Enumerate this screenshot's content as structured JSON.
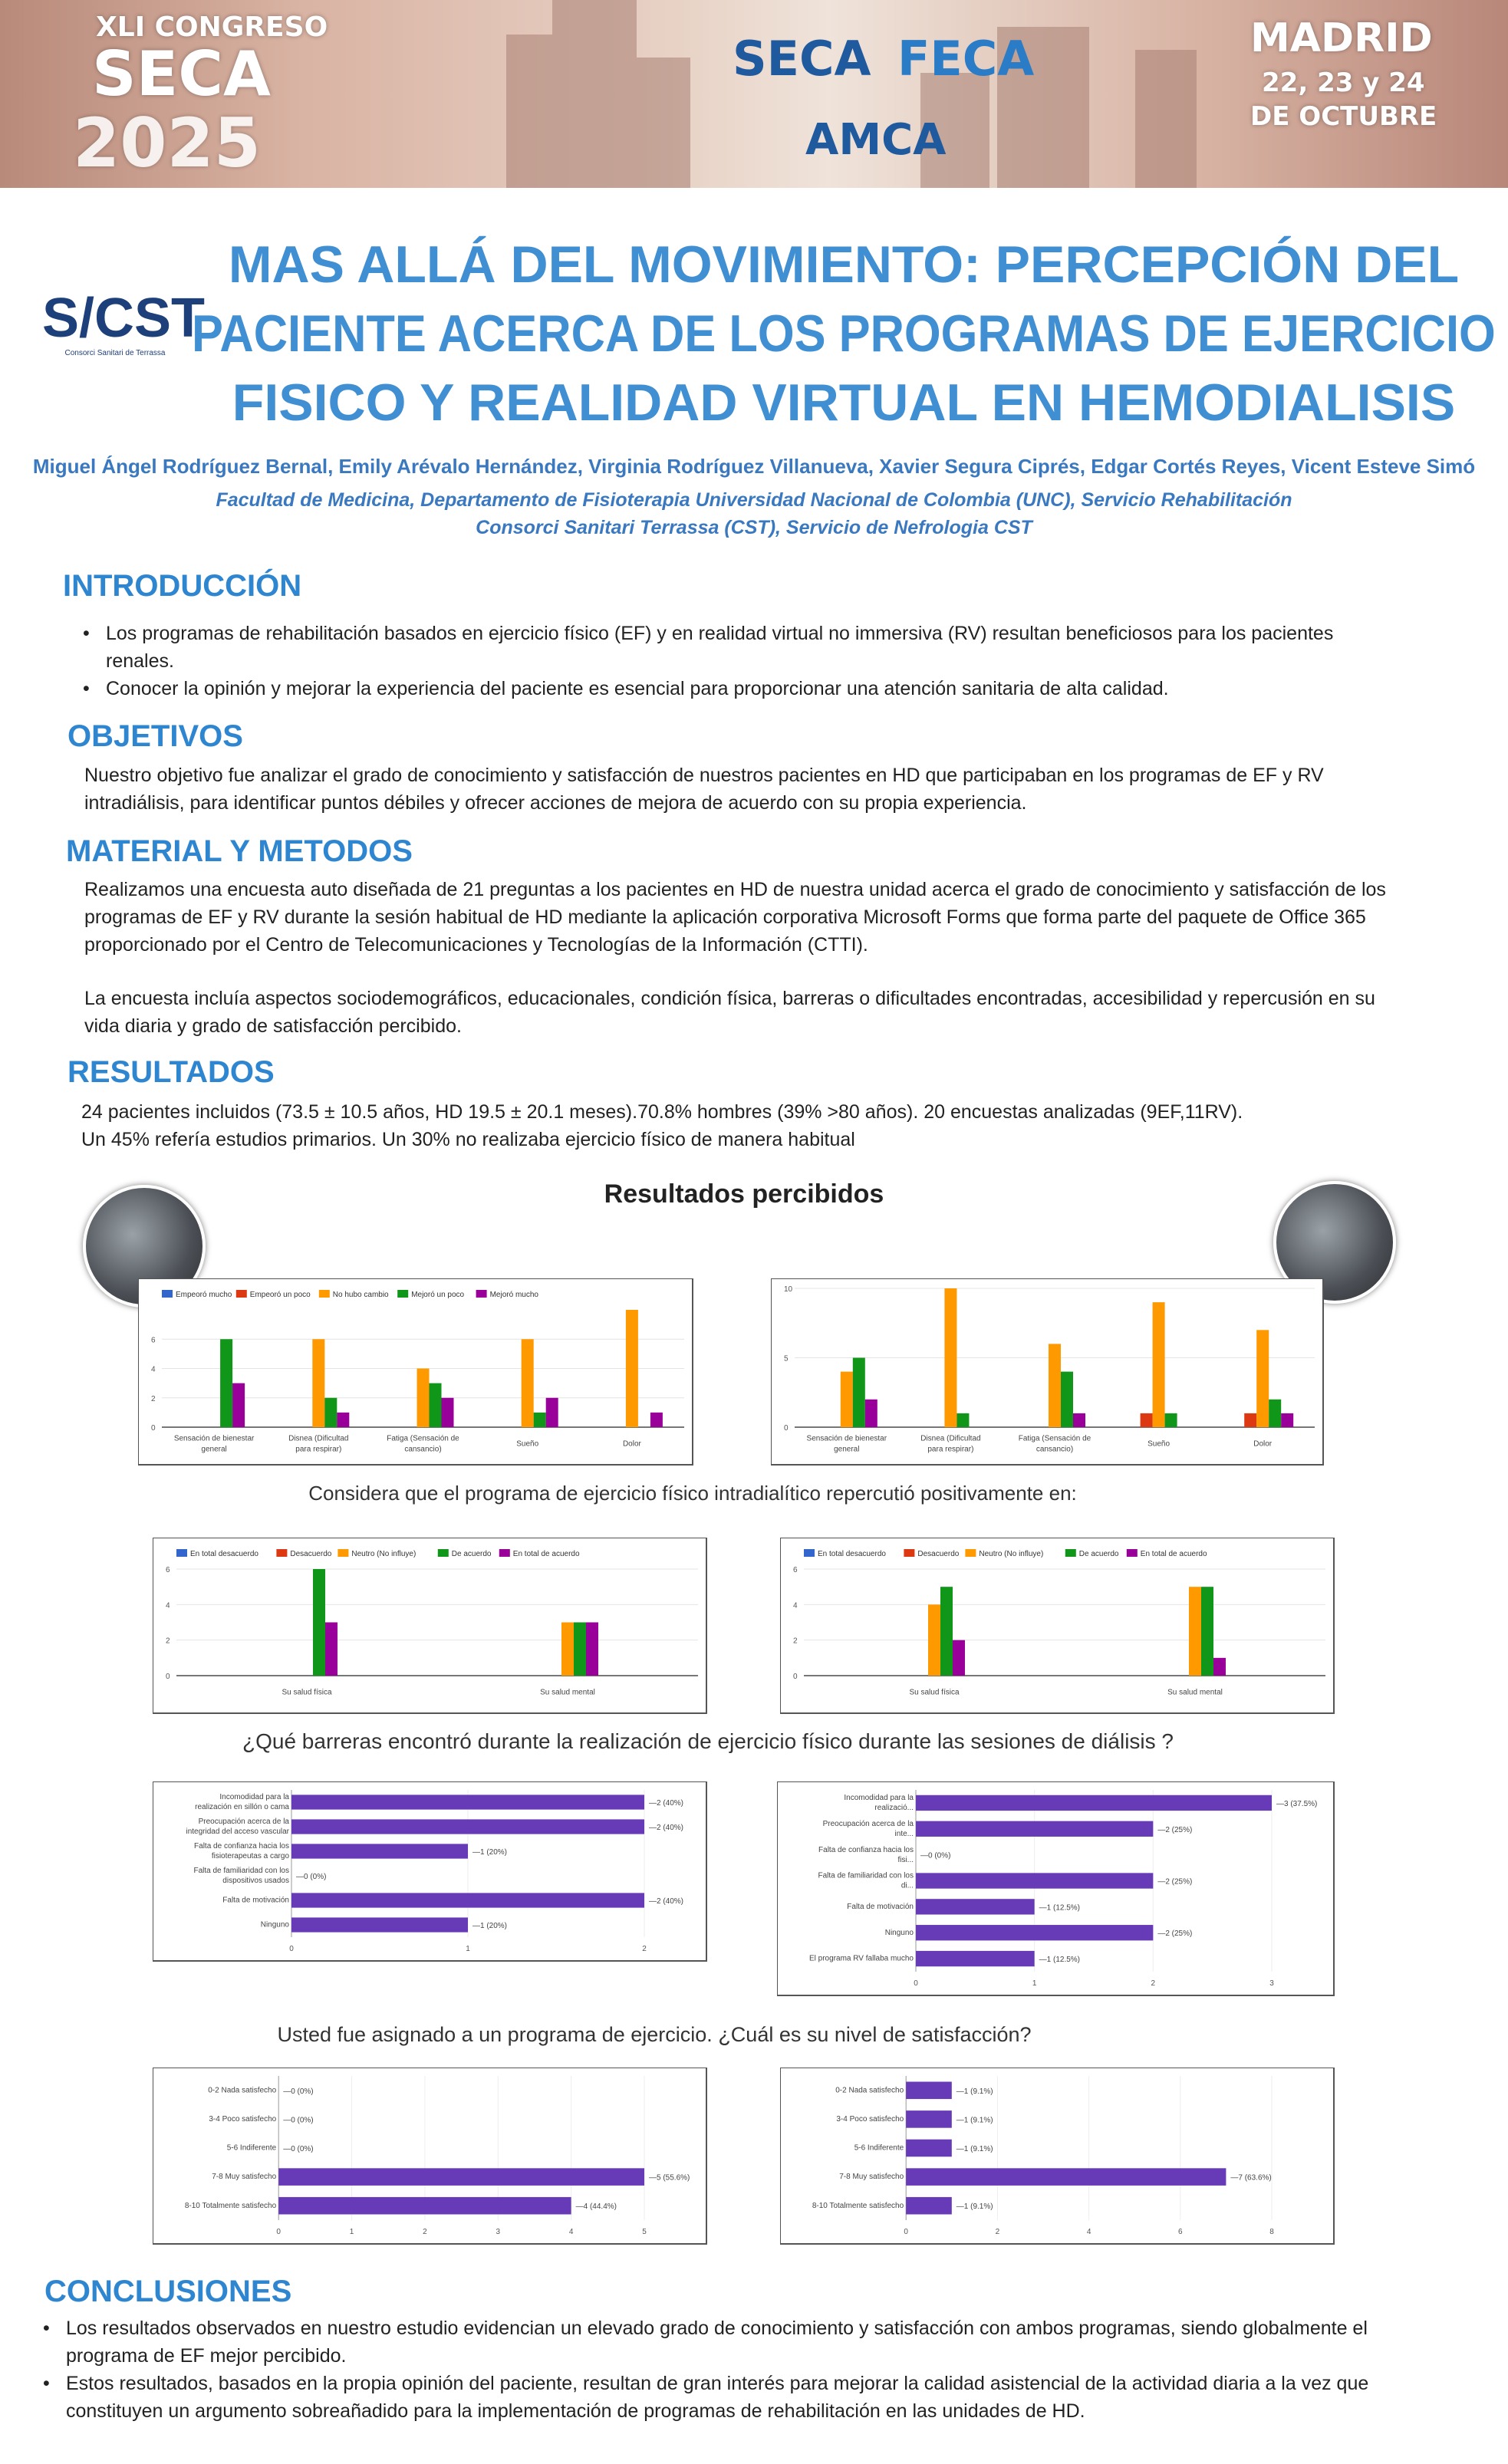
{
  "banner": {
    "congress_line1": "XLI CONGRESO",
    "congress_line2": "SECA",
    "congress_line3": "2025",
    "org1": "SECA",
    "org2": "FECA",
    "org3": "AMCA",
    "city": "MADRID",
    "dates1": "22, 23 y 24",
    "dates2": "DE OCTUBRE"
  },
  "logo": {
    "text": "S/CST",
    "subtitle": "Consorci Sanitari de Terrassa"
  },
  "title": [
    "MAS ALLÁ DEL MOVIMIENTO: PERCEPCIÓN DEL",
    "PACIENTE ACERCA DE LOS PROGRAMAS DE EJERCICIO",
    "FISICO Y REALIDAD VIRTUAL EN HEMODIALISIS"
  ],
  "authors": "Miguel Ángel Rodríguez Bernal, Emily Arévalo Hernández, Virginia Rodríguez Villanueva, Xavier Segura Ciprés, Edgar Cortés Reyes, Vicent Esteve Simó",
  "affiliation": [
    "Facultad de Medicina, Departamento de Fisioterapia Universidad Nacional de Colombia (UNC), Servicio Rehabilitación",
    "Consorci Sanitari Terrassa (CST), Servicio de Nefrologia CST"
  ],
  "intro": {
    "heading": "INTRODUCCIÓN",
    "bullets": [
      "Los programas de rehabilitación basados en ejercicio físico (EF) y en realidad virtual no immersiva (RV) resultan beneficiosos para los pacientes renales.",
      "Conocer la opinión y mejorar la experiencia del paciente es esencial para proporcionar una atención sanitaria de alta calidad."
    ]
  },
  "objetivos": {
    "heading": "OBJETIVOS",
    "text": "Nuestro objetivo fue analizar el grado de conocimiento y satisfacción de nuestros pacientes en HD que participaban en los programas de EF y RV intradiálisis, para identificar puntos débiles y ofrecer acciones de mejora de acuerdo con su propia experiencia."
  },
  "metodos": {
    "heading": "MATERIAL Y METODOS",
    "p1": "Realizamos una encuesta auto diseñada de 21 preguntas a los pacientes en HD de nuestra unidad acerca el grado de conocimiento y satisfacción de los programas de EF y RV durante la sesión habitual de HD mediante la aplicación corporativa Microsoft Forms que forma parte del paquete de Office 365 proporcionado por el Centro de Telecomunicaciones y Tecnologías de la Información (CTTI).",
    "p2": "La encuesta incluía aspectos sociodemográficos, educacionales, condición física, barreras o dificultades encontradas, accesibilidad y repercusión en su vida diaria y grado de satisfacción percibido."
  },
  "resultados": {
    "heading": "RESULTADOS",
    "line1": "24 pacientes  incluidos (73.5 ± 10.5 años, HD 19.5 ± 20.1 meses).70.8% hombres (39% >80 años). 20 encuestas analizadas (9EF,11RV).",
    "line2": "Un 45% refería estudios primarios. Un 30% no realizaba ejercicio físico de manera habitual",
    "subtitle": "Resultados percibidos",
    "caption1": "Considera que el programa de ejercicio físico intradialítico repercutió positivamente en:",
    "caption2": "¿Qué barreras encontró durante la realización de ejercicio físico durante las sesiones de diálisis ?",
    "caption3": "Usted fue asignado a un programa de ejercicio. ¿Cuál es su nivel de satisfacción?"
  },
  "chart_data": [
    {
      "type": "bar",
      "id": "c1",
      "categories": [
        "Sensación de bienestar general",
        "Disnea (Dificultad para respirar)",
        "Fatiga (Sensación de cansancio)",
        "Sueño",
        "Dolor"
      ],
      "ylim": [
        0,
        8
      ],
      "yticks": [
        0,
        2,
        4,
        6
      ],
      "legend": "top",
      "series": [
        {
          "name": "Empeoró mucho",
          "color": "#3366cc",
          "values": [
            0,
            0,
            0,
            0,
            0
          ]
        },
        {
          "name": "Empeoró un poco",
          "color": "#dc3912",
          "values": [
            0,
            0,
            0,
            0,
            0
          ]
        },
        {
          "name": "No hubo cambio",
          "color": "#ff9900",
          "values": [
            0,
            6,
            4,
            6,
            8
          ]
        },
        {
          "name": "Mejoró un poco",
          "color": "#109618",
          "values": [
            6,
            2,
            3,
            1,
            0
          ]
        },
        {
          "name": "Mejoró mucho",
          "color": "#990099",
          "values": [
            3,
            1,
            2,
            2,
            1
          ]
        }
      ]
    },
    {
      "type": "bar",
      "id": "c2",
      "categories": [
        "Sensación de bienestar general",
        "Disnea (Dificultad para respirar)",
        "Fatiga (Sensación de cansancio)",
        "Sueño",
        "Dolor"
      ],
      "ylim": [
        0,
        10
      ],
      "yticks": [
        0,
        5,
        10
      ],
      "legend": "none",
      "series": [
        {
          "name": "Empeoró mucho",
          "color": "#3366cc",
          "values": [
            0,
            0,
            0,
            0,
            0
          ]
        },
        {
          "name": "Empeoró un poco",
          "color": "#dc3912",
          "values": [
            0,
            0,
            0,
            1,
            1
          ]
        },
        {
          "name": "No hubo cambio",
          "color": "#ff9900",
          "values": [
            4,
            10,
            6,
            9,
            7
          ]
        },
        {
          "name": "Mejoró un poco",
          "color": "#109618",
          "values": [
            5,
            1,
            4,
            1,
            2
          ]
        },
        {
          "name": "Mejoró mucho",
          "color": "#990099",
          "values": [
            2,
            0,
            1,
            0,
            1
          ]
        }
      ]
    },
    {
      "type": "bar",
      "id": "c3",
      "categories": [
        "Su salud física",
        "Su salud mental"
      ],
      "ylim": [
        0,
        6
      ],
      "yticks": [
        0,
        2,
        4,
        6
      ],
      "legend": "top",
      "series": [
        {
          "name": "En total desacuerdo",
          "color": "#3366cc",
          "values": [
            0,
            0
          ]
        },
        {
          "name": "Desacuerdo",
          "color": "#dc3912",
          "values": [
            0,
            0
          ]
        },
        {
          "name": "Neutro (No influye)",
          "color": "#ff9900",
          "values": [
            0,
            3
          ]
        },
        {
          "name": "De acuerdo",
          "color": "#109618",
          "values": [
            6,
            3
          ]
        },
        {
          "name": "En total de acuerdo",
          "color": "#990099",
          "values": [
            3,
            3
          ]
        }
      ]
    },
    {
      "type": "bar",
      "id": "c4",
      "categories": [
        "Su salud física",
        "Su salud mental"
      ],
      "ylim": [
        0,
        6
      ],
      "yticks": [
        0,
        2,
        4,
        6
      ],
      "legend": "top",
      "series": [
        {
          "name": "En total desacuerdo",
          "color": "#3366cc",
          "values": [
            0,
            0
          ]
        },
        {
          "name": "Desacuerdo",
          "color": "#dc3912",
          "values": [
            0,
            0
          ]
        },
        {
          "name": "Neutro (No influye)",
          "color": "#ff9900",
          "values": [
            4,
            5
          ]
        },
        {
          "name": "De acuerdo",
          "color": "#109618",
          "values": [
            5,
            5
          ]
        },
        {
          "name": "En total de acuerdo",
          "color": "#990099",
          "values": [
            2,
            1
          ]
        }
      ]
    },
    {
      "type": "hbar",
      "id": "c5",
      "categories": [
        "Incomodidad para la realización en sillón o cama",
        "Preocupación acerca de la integridad del acceso vascular",
        "Falta de confianza hacia los fisioterapeutas a cargo",
        "Falta de familiaridad con los dispositivos usados",
        "Falta de motivación",
        "Ninguno"
      ],
      "values": [
        2,
        2,
        1,
        0,
        2,
        1
      ],
      "labels": [
        "2 (40%)",
        "2 (40%)",
        "1 (20%)",
        "0 (0%)",
        "2 (40%)",
        "1 (20%)"
      ],
      "xlim": [
        0,
        2
      ],
      "xticks": [
        0,
        1,
        2
      ],
      "color": "#673ab7"
    },
    {
      "type": "hbar",
      "id": "c6",
      "categories": [
        "Incomodidad para la realizació...",
        "Preocupación acerca de la inte...",
        "Falta de confianza hacia los fisi...",
        "Falta de familiaridad con los di...",
        "Falta de motivación",
        "Ninguno",
        "El programa RV fallaba mucho"
      ],
      "values": [
        3,
        2,
        0,
        2,
        1,
        2,
        1
      ],
      "labels": [
        "3 (37.5%)",
        "2 (25%)",
        "0 (0%)",
        "2 (25%)",
        "1 (12.5%)",
        "2 (25%)",
        "1 (12.5%)"
      ],
      "xlim": [
        0,
        3
      ],
      "xticks": [
        0,
        1,
        2,
        3
      ],
      "color": "#673ab7"
    },
    {
      "type": "hbar",
      "id": "c7",
      "categories": [
        "0-2 Nada satisfecho",
        "3-4 Poco satisfecho",
        "5-6 Indiferente",
        "7-8 Muy satisfecho",
        "8-10 Totalmente satisfecho"
      ],
      "values": [
        0,
        0,
        0,
        5,
        4
      ],
      "labels": [
        "0 (0%)",
        "0 (0%)",
        "0 (0%)",
        "5 (55.6%)",
        "4 (44.4%)"
      ],
      "xlim": [
        0,
        5
      ],
      "xticks": [
        0,
        1,
        2,
        3,
        4,
        5
      ],
      "color": "#673ab7"
    },
    {
      "type": "hbar",
      "id": "c8",
      "categories": [
        "0-2 Nada satisfecho",
        "3-4 Poco satisfecho",
        "5-6 Indiferente",
        "7-8 Muy satisfecho",
        "8-10 Totalmente satisfecho"
      ],
      "values": [
        1,
        1,
        1,
        7,
        1
      ],
      "labels": [
        "1 (9.1%)",
        "1 (9.1%)",
        "1 (9.1%)",
        "7 (63.6%)",
        "1 (9.1%)"
      ],
      "xlim": [
        0,
        8
      ],
      "xticks": [
        0,
        2,
        4,
        6,
        8
      ],
      "color": "#673ab7"
    }
  ],
  "conclusiones": {
    "heading": "CONCLUSIONES",
    "bullets": [
      "Los resultados observados en nuestro estudio evidencian un elevado grado de conocimiento y satisfacción con ambos programas, siendo globalmente el programa de EF mejor percibido.",
      "Estos resultados, basados en la propia opinión del paciente, resultan de gran interés para mejorar la calidad asistencial de la actividad diaria a la vez que constituyen un argumento sobreañadido para la implementación de programas de rehabilitación en las unidades de HD."
    ]
  }
}
